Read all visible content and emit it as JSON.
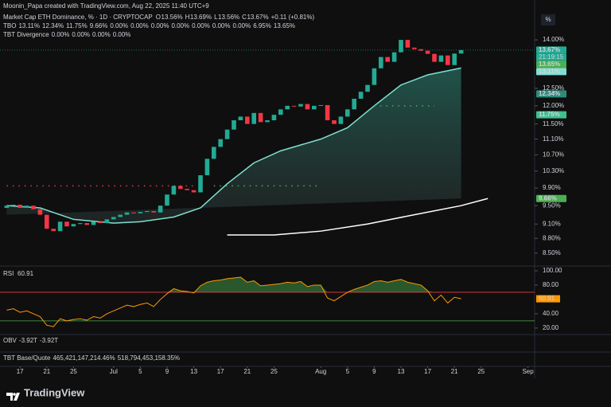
{
  "header": "Moonin_Papa created with TradingView.com, Aug 22, 2025 11:40 UTC+9",
  "legend": {
    "title": "Market Cap ETH Dominance, % · 1D · CRYPTOCAP",
    "ohlc": [
      "O",
      "13.56%",
      "H",
      "13.69%",
      "L",
      "13.56%",
      "C",
      "13.67%",
      "+0.11 (+0.81%)"
    ],
    "tbo": [
      "TBO",
      "13.11%",
      "12.34%",
      "11.75%",
      "9.66%",
      "0.00%",
      "0.00%",
      "0.00%",
      "0.00%",
      "0.00%",
      "0.00%",
      "0.00%",
      "6.95%",
      "13.65%"
    ],
    "div": [
      "TBT Divergence",
      "0.00%",
      "0.00%",
      "0.00%",
      "0.00%"
    ],
    "obv": [
      "OBV",
      "-3.92T",
      "-3.92T"
    ],
    "tbt": [
      "TBT Base/Quote",
      "465,421,147,214.46%",
      "518,794,453,158.35%"
    ],
    "rsi": "RSI"
  },
  "scale_button": "%",
  "countdown": "21:19:15",
  "brand": "TradingView",
  "chart_data": {
    "type": "candlestick",
    "log_scale": true,
    "up_color": "#22ab94",
    "down_color": "#f23645",
    "xlim": [
      "2025-06-14",
      "2025-09-02"
    ],
    "ylim": [
      8.31,
      15.37
    ],
    "x": [
      "2025-06-15",
      "2025-06-16",
      "2025-06-17",
      "2025-06-18",
      "2025-06-19",
      "2025-06-20",
      "2025-06-21",
      "2025-06-22",
      "2025-06-23",
      "2025-06-24",
      "2025-06-25",
      "2025-06-26",
      "2025-06-27",
      "2025-06-28",
      "2025-06-29",
      "2025-06-30",
      "2025-07-01",
      "2025-07-02",
      "2025-07-03",
      "2025-07-04",
      "2025-07-05",
      "2025-07-06",
      "2025-07-07",
      "2025-07-08",
      "2025-07-09",
      "2025-07-10",
      "2025-07-11",
      "2025-07-12",
      "2025-07-13",
      "2025-07-14",
      "2025-07-15",
      "2025-07-16",
      "2025-07-17",
      "2025-07-18",
      "2025-07-19",
      "2025-07-20",
      "2025-07-21",
      "2025-07-22",
      "2025-07-23",
      "2025-07-24",
      "2025-07-25",
      "2025-07-26",
      "2025-07-27",
      "2025-07-28",
      "2025-07-29",
      "2025-07-30",
      "2025-07-31",
      "2025-08-01",
      "2025-08-02",
      "2025-08-03",
      "2025-08-04",
      "2025-08-05",
      "2025-08-06",
      "2025-08-07",
      "2025-08-08",
      "2025-08-09",
      "2025-08-10",
      "2025-08-11",
      "2025-08-12",
      "2025-08-13",
      "2025-08-14",
      "2025-08-15",
      "2025-08-16",
      "2025-08-17",
      "2025-08-18",
      "2025-08-19",
      "2025-08-20",
      "2025-08-21",
      "2025-08-22"
    ],
    "open": [
      9.45,
      9.5,
      9.52,
      9.45,
      9.5,
      9.42,
      9.3,
      9.0,
      8.95,
      9.15,
      9.05,
      9.1,
      9.12,
      9.08,
      9.15,
      9.12,
      9.2,
      9.25,
      9.3,
      9.35,
      9.33,
      9.36,
      9.38,
      9.35,
      9.5,
      9.75,
      9.95,
      9.88,
      9.85,
      9.8,
      10.2,
      10.6,
      10.9,
      11.1,
      11.35,
      11.6,
      11.7,
      11.5,
      11.8,
      11.55,
      11.6,
      11.75,
      11.9,
      12.0,
      11.98,
      12.05,
      11.9,
      12.0,
      12.02,
      11.6,
      11.5,
      11.7,
      11.9,
      12.2,
      12.4,
      12.6,
      13.1,
      13.45,
      13.3,
      13.6,
      14.0,
      13.75,
      13.7,
      13.65,
      13.55,
      13.3,
      13.5,
      13.2,
      13.56
    ],
    "close": [
      9.5,
      9.52,
      9.45,
      9.5,
      9.42,
      9.3,
      9.0,
      8.95,
      9.15,
      9.05,
      9.1,
      9.12,
      9.08,
      9.15,
      9.12,
      9.2,
      9.25,
      9.3,
      9.35,
      9.33,
      9.36,
      9.38,
      9.35,
      9.5,
      9.75,
      9.95,
      9.88,
      9.85,
      9.8,
      10.2,
      10.6,
      10.9,
      11.1,
      11.35,
      11.6,
      11.7,
      11.5,
      11.8,
      11.55,
      11.6,
      11.75,
      11.9,
      12.0,
      11.98,
      12.05,
      11.9,
      12.0,
      12.02,
      11.6,
      11.5,
      11.7,
      11.9,
      12.2,
      12.4,
      12.6,
      13.1,
      13.45,
      13.3,
      13.6,
      14.0,
      13.75,
      13.7,
      13.65,
      13.55,
      13.3,
      13.5,
      13.2,
      13.56,
      13.67
    ],
    "yticks": [
      {
        "value": 14,
        "label": "14.00%"
      },
      {
        "value": 12.5,
        "label": "12.50%"
      },
      {
        "value": 12,
        "label": "12.00%"
      },
      {
        "value": 11.5,
        "label": "11.50%"
      },
      {
        "value": 11.1,
        "label": "11.10%"
      },
      {
        "value": 10.7,
        "label": "10.70%"
      },
      {
        "value": 10.3,
        "label": "10.30%"
      },
      {
        "value": 9.9,
        "label": "9.90%"
      },
      {
        "value": 9.5,
        "label": "9.50%"
      },
      {
        "value": 9.1,
        "label": "9.10%"
      },
      {
        "value": 8.8,
        "label": "8.80%"
      },
      {
        "value": 8.5,
        "label": "8.50%"
      }
    ],
    "xticks": [
      {
        "value": "2025-06-17",
        "label": "17"
      },
      {
        "value": "2025-06-21",
        "label": "21"
      },
      {
        "value": "2025-06-25",
        "label": "25"
      },
      {
        "value": "2025-07-01",
        "label": "Jul"
      },
      {
        "value": "2025-07-05",
        "label": "5"
      },
      {
        "value": "2025-07-09",
        "label": "9"
      },
      {
        "value": "2025-07-13",
        "label": "13"
      },
      {
        "value": "2025-07-17",
        "label": "17"
      },
      {
        "value": "2025-07-21",
        "label": "21"
      },
      {
        "value": "2025-07-25",
        "label": "25"
      },
      {
        "value": "2025-08-01",
        "label": "Aug"
      },
      {
        "value": "2025-08-05",
        "label": "5"
      },
      {
        "value": "2025-08-09",
        "label": "9"
      },
      {
        "value": "2025-08-13",
        "label": "13"
      },
      {
        "value": "2025-08-17",
        "label": "17"
      },
      {
        "value": "2025-08-21",
        "label": "21"
      },
      {
        "value": "2025-08-25",
        "label": "25"
      },
      {
        "value": "2025-09-01",
        "label": "Sep"
      }
    ],
    "series": [
      {
        "color": "#7fe0cf",
        "x": [
          "2025-06-15",
          "2025-06-20",
          "2025-06-25",
          "2025-07-01",
          "2025-07-05",
          "2025-07-10",
          "2025-07-14",
          "2025-07-18",
          "2025-07-22",
          "2025-07-26",
          "2025-08-01",
          "2025-08-05",
          "2025-08-09",
          "2025-08-13",
          "2025-08-17",
          "2025-08-22"
        ],
        "values": [
          9.5,
          9.45,
          9.2,
          9.12,
          9.15,
          9.25,
          9.45,
          10.0,
          10.5,
          10.8,
          11.1,
          11.4,
          12.0,
          12.6,
          12.9,
          13.11
        ]
      },
      {
        "color": "#ffffff",
        "x": [
          "2025-07-18",
          "2025-07-25",
          "2025-08-01",
          "2025-08-08",
          "2025-08-15",
          "2025-08-22",
          "2025-08-26"
        ],
        "values": [
          8.87,
          8.87,
          8.95,
          9.1,
          9.3,
          9.5,
          9.66
        ]
      }
    ],
    "dotted": [
      {
        "color": "#f23645",
        "value": 9.95,
        "x": [
          "2025-06-15",
          "2025-07-13"
        ]
      },
      {
        "color": "#4caf50",
        "value": 9.95,
        "x": [
          "2025-07-16",
          "2025-08-01"
        ]
      },
      {
        "color": "#4caf50",
        "value": 12.0,
        "x": [
          "2025-08-09",
          "2025-08-18"
        ]
      }
    ],
    "price_labels": [
      {
        "value": 13.67,
        "label": "13.67%",
        "color": "#22ab94"
      },
      {
        "value": 13.65,
        "label": "13.65%",
        "color": "#4caf50"
      },
      {
        "value": 13.11,
        "label": "13.11%",
        "color": "#7fe0cf"
      },
      {
        "value": 12.34,
        "label": "12.34%",
        "color": "#2e8b7a"
      },
      {
        "value": 11.75,
        "label": "11.75%",
        "color": "#3fbf8f"
      },
      {
        "value": 9.66,
        "label": "9.66%",
        "color": "#4caf50"
      }
    ],
    "rsi": {
      "color": "#ff9800",
      "ylim": [
        11,
        104.4
      ],
      "levels": [
        70,
        30
      ],
      "yticks": [
        {
          "value": 100,
          "label": "100.00"
        },
        {
          "value": 80,
          "label": "80.00"
        },
        {
          "value": 40,
          "label": "40.00"
        },
        {
          "value": 20,
          "label": "20.00"
        }
      ],
      "values": [
        45,
        47,
        42,
        44,
        40,
        36,
        24,
        22,
        33,
        30,
        32,
        33,
        31,
        36,
        34,
        40,
        44,
        48,
        52,
        50,
        53,
        55,
        50,
        60,
        68,
        75,
        72,
        71,
        69,
        79,
        84,
        86,
        87,
        89,
        90,
        91,
        84,
        86,
        79,
        80,
        81,
        82,
        84,
        83,
        85,
        78,
        80,
        80,
        62,
        58,
        64,
        70,
        74,
        77,
        80,
        85,
        86,
        84,
        86,
        88,
        84,
        82,
        80,
        72,
        58,
        66,
        55,
        63,
        60.91
      ]
    }
  }
}
